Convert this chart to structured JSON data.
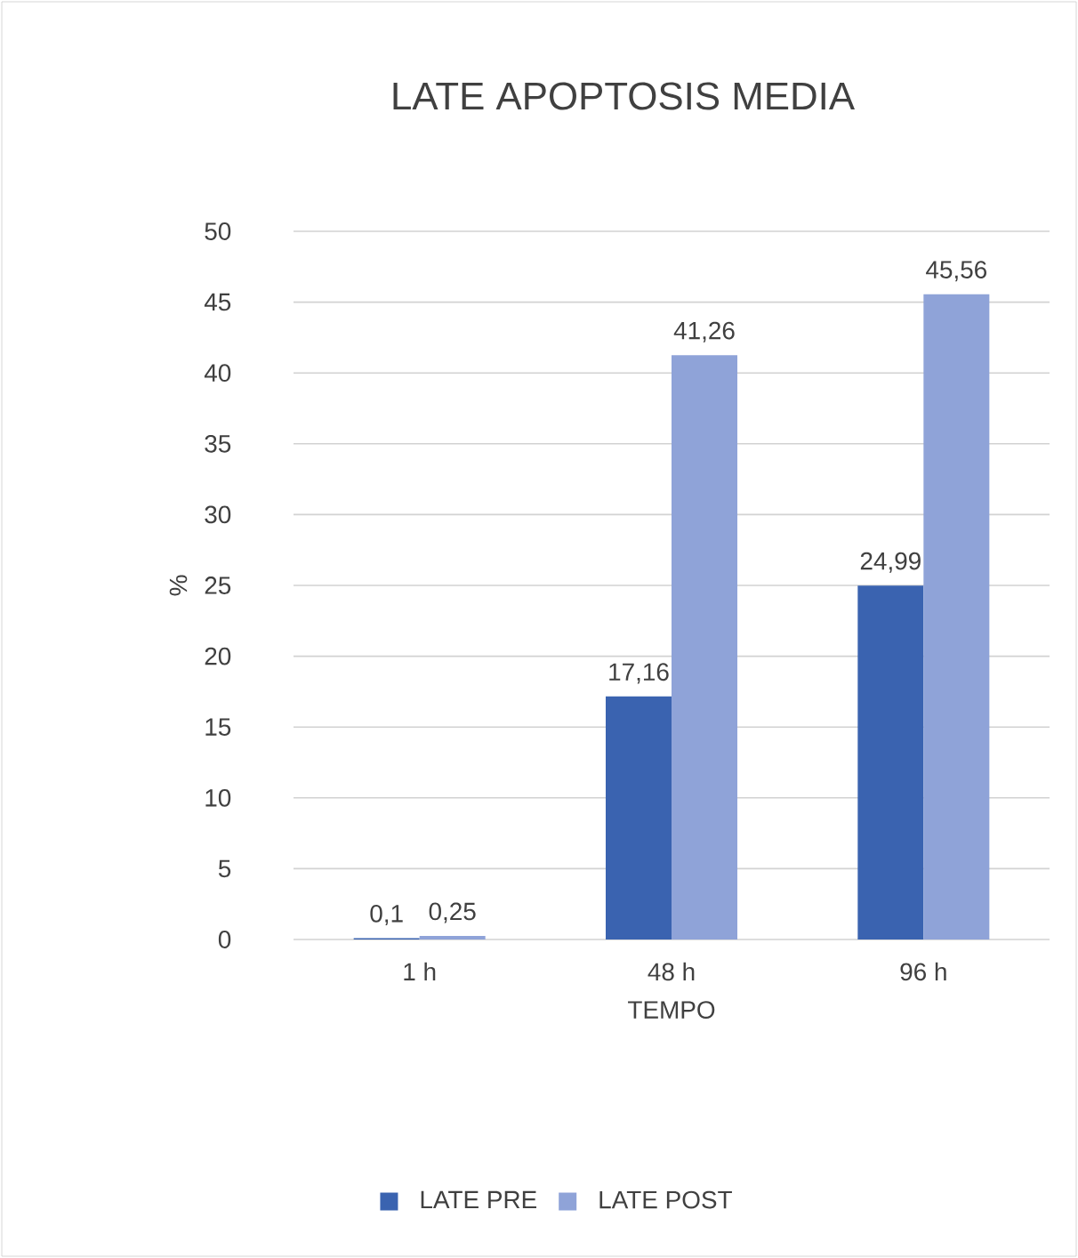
{
  "chart_data": {
    "type": "bar",
    "title": "LATE APOPTOSIS  MEDIA",
    "xlabel": "TEMPO",
    "ylabel": "%",
    "categories": [
      "1 h",
      "48 h",
      "96 h"
    ],
    "series": [
      {
        "name": "LATE PRE",
        "color": "#3a63b0",
        "values": [
          0.1,
          17.16,
          24.99
        ],
        "value_labels": [
          "0,1",
          "17,16",
          "24,99"
        ]
      },
      {
        "name": "LATE POST",
        "color": "#8fa3d8",
        "values": [
          0.25,
          41.26,
          45.56
        ],
        "value_labels": [
          "0,25",
          "41,26",
          "45,56"
        ]
      }
    ],
    "ylim": [
      0,
      50
    ],
    "yticks": [
      0,
      5,
      10,
      15,
      20,
      25,
      30,
      35,
      40,
      45,
      50
    ],
    "grid": "y",
    "legend": "bottom"
  }
}
